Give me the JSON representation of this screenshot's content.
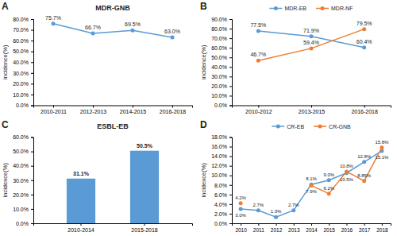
{
  "chart_data": [
    {
      "type": "line",
      "title": "MDR-GNB",
      "annotations": [
        "A"
      ],
      "categories": [
        "2010-2011",
        "2012-2013",
        "2014-2015",
        "2016-2018"
      ],
      "series": [
        {
          "color": "#5B9BD5",
          "values": [
            75.7,
            66.7,
            69.5,
            63.0
          ],
          "value_labels": [
            "75.7%",
            "66.7%",
            "69.5%",
            "63.0%"
          ]
        }
      ],
      "ylabel": "incidence(%)",
      "ylim": [
        0,
        80
      ],
      "yticks": [
        {
          "value": 0,
          "label": "0.0%"
        },
        {
          "value": 10,
          "label": "10.0%"
        },
        {
          "value": 20,
          "label": "20.0%"
        },
        {
          "value": 30,
          "label": "30.0%"
        },
        {
          "value": 40,
          "label": "40.0%"
        },
        {
          "value": 50,
          "label": "50.0%"
        },
        {
          "value": 60,
          "label": "60.0%"
        },
        {
          "value": 70,
          "label": "70.0%"
        },
        {
          "value": 80,
          "label": "80.0%"
        }
      ],
      "marker": "circle",
      "data_labels": true
    },
    {
      "type": "line",
      "annotations": [
        "B"
      ],
      "categories": [
        "2010-2012",
        "2013-2015",
        "2016-2018"
      ],
      "series": [
        {
          "name": "MDR-EB",
          "color": "#5B9BD5",
          "values": [
            77.5,
            71.9,
            60.4
          ],
          "value_labels": [
            "77.5%",
            "71.9%",
            "60.4%"
          ]
        },
        {
          "name": "MDR-NF",
          "color": "#ED7D31",
          "values": [
            46.7,
            59.4,
            79.5
          ],
          "value_labels": [
            "46.7%",
            "59.4%",
            "79.5%"
          ]
        }
      ],
      "ylabel": "incidence(%)",
      "ylim": [
        0,
        90
      ],
      "yticks": [
        {
          "value": 0,
          "label": "0.0%"
        },
        {
          "value": 10,
          "label": "10.0%"
        },
        {
          "value": 20,
          "label": "20.0%"
        },
        {
          "value": 30,
          "label": "30.0%"
        },
        {
          "value": 40,
          "label": "40.0%"
        },
        {
          "value": 50,
          "label": "50.0%"
        },
        {
          "value": 60,
          "label": "60.0%"
        },
        {
          "value": 70,
          "label": "70.0%"
        },
        {
          "value": 80,
          "label": "80.0%"
        },
        {
          "value": 90,
          "label": "90.0%"
        }
      ],
      "marker": "circle",
      "data_labels": true,
      "legend": "top"
    },
    {
      "type": "bar",
      "title": "ESBL-EB",
      "annotations": [
        "C"
      ],
      "categories": [
        "2010-2014",
        "2015-2018"
      ],
      "series": [
        {
          "color": "#5B9BD5",
          "values": [
            31.1,
            50.5
          ],
          "value_labels": [
            "31.1%",
            "50.5%"
          ]
        }
      ],
      "ylabel": "incidence(%)",
      "ylim": [
        0,
        60
      ],
      "yticks": [
        {
          "value": 0,
          "label": "0.0%"
        },
        {
          "value": 10,
          "label": "10.0%"
        },
        {
          "value": 20,
          "label": "20.0%"
        },
        {
          "value": 30,
          "label": "30.0%"
        },
        {
          "value": 40,
          "label": "40.0%"
        },
        {
          "value": 50,
          "label": "50.0%"
        },
        {
          "value": 60,
          "label": "60.0%"
        }
      ],
      "data_labels": true
    },
    {
      "type": "line",
      "annotations": [
        "D"
      ],
      "categories": [
        "2010",
        "2011",
        "2012",
        "2013",
        "2014",
        "2015",
        "2016",
        "2017",
        "2018"
      ],
      "series": [
        {
          "name": "CR-EB",
          "color": "#5B9BD5",
          "values": [
            3.0,
            2.7,
            1.3,
            2.7,
            8.1,
            9.0,
            10.5,
            12.8,
            15.1
          ],
          "value_labels": [
            "3.0%",
            "2.7%",
            "1.3%",
            "2.7%",
            "8.1%",
            "9.0%",
            "10.5%",
            "12.8%",
            "15.1%"
          ]
        },
        {
          "name": "CR-GNB",
          "color": "#ED7D31",
          "values": [
            4.2,
            null,
            null,
            null,
            7.9,
            6.2,
            10.8,
            8.85,
            15.8
          ],
          "value_labels": [
            "4.2%",
            null,
            null,
            null,
            "7.9%",
            "6.2%",
            "10.8%",
            "8.85%",
            "15.8%"
          ]
        }
      ],
      "ylabel": "incidence(%)",
      "ylim": [
        0,
        18
      ],
      "yticks": [
        {
          "value": 0,
          "label": "0.0%"
        },
        {
          "value": 2,
          "label": "2.0%"
        },
        {
          "value": 4,
          "label": "4.0%"
        },
        {
          "value": 6,
          "label": "6.0%"
        },
        {
          "value": 8,
          "label": "8.0%"
        },
        {
          "value": 10,
          "label": "10.0%"
        },
        {
          "value": 12,
          "label": "12.0%"
        },
        {
          "value": 14,
          "label": "14.0%"
        },
        {
          "value": 16,
          "label": "16.0%"
        },
        {
          "value": 18,
          "label": "18.0%"
        }
      ],
      "marker": "circle",
      "data_labels": true,
      "legend": "top"
    }
  ]
}
